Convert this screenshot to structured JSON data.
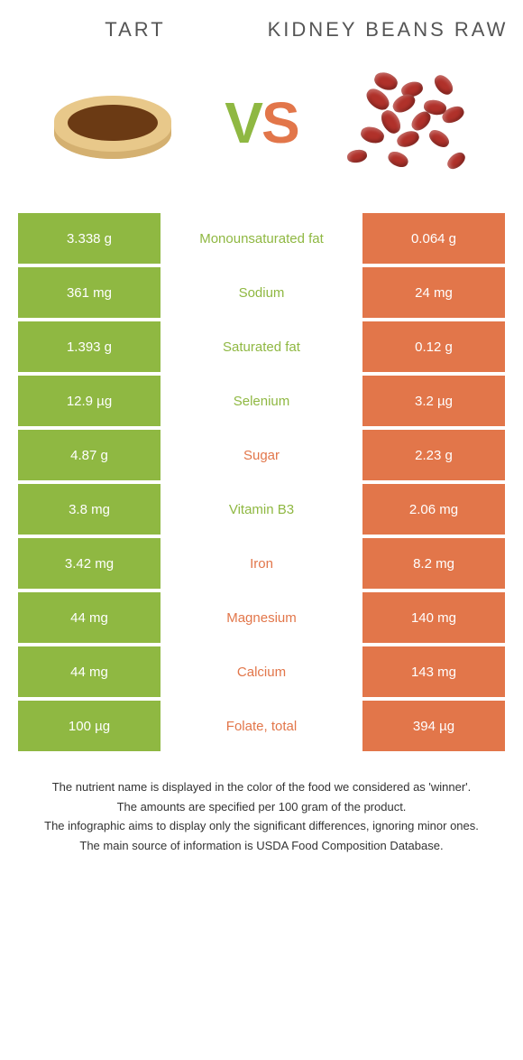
{
  "header": {
    "left_title": "Tart",
    "right_title": "Kidney beans raw",
    "vs_v": "V",
    "vs_s": "S"
  },
  "colors": {
    "left": "#8fb842",
    "right": "#e2764a",
    "tart_crust": "#e8c88a",
    "tart_fill": "#6b3a14",
    "bean": "#b0312a"
  },
  "table": {
    "rows": [
      {
        "left": "3.338 g",
        "label": "Monounsaturated fat",
        "right": "0.064 g",
        "winner": "left"
      },
      {
        "left": "361 mg",
        "label": "Sodium",
        "right": "24 mg",
        "winner": "left"
      },
      {
        "left": "1.393 g",
        "label": "Saturated fat",
        "right": "0.12 g",
        "winner": "left"
      },
      {
        "left": "12.9 µg",
        "label": "Selenium",
        "right": "3.2 µg",
        "winner": "left"
      },
      {
        "left": "4.87 g",
        "label": "Sugar",
        "right": "2.23 g",
        "winner": "right"
      },
      {
        "left": "3.8 mg",
        "label": "Vitamin B3",
        "right": "2.06 mg",
        "winner": "left"
      },
      {
        "left": "3.42 mg",
        "label": "Iron",
        "right": "8.2 mg",
        "winner": "right"
      },
      {
        "left": "44 mg",
        "label": "Magnesium",
        "right": "140 mg",
        "winner": "right"
      },
      {
        "left": "44 mg",
        "label": "Calcium",
        "right": "143 mg",
        "winner": "right"
      },
      {
        "left": "100 µg",
        "label": "Folate, total",
        "right": "394 µg",
        "winner": "right"
      }
    ]
  },
  "footer": {
    "line1": "The nutrient name is displayed in the color of the food we considered as 'winner'.",
    "line2": "The amounts are specified per 100 gram of the product.",
    "line3": "The infographic aims to display only the significant differences, ignoring minor ones.",
    "line4": "The main source of information is USDA Food Composition Database."
  }
}
